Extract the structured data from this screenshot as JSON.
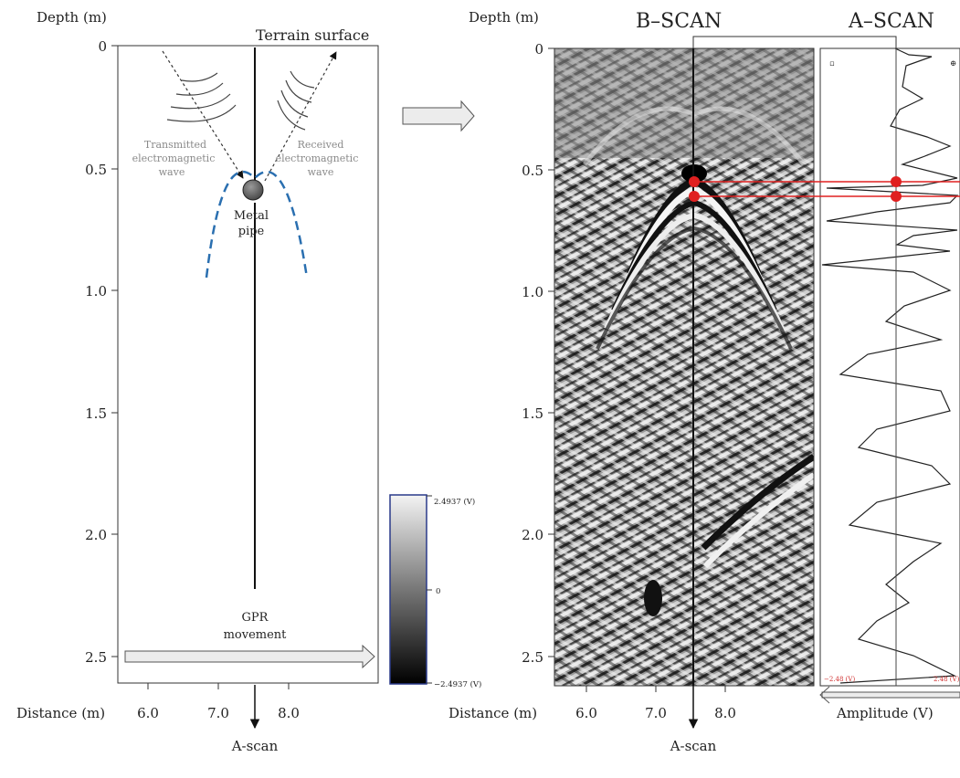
{
  "left_panel": {
    "depth_label": "Depth (m)",
    "distance_label": "Distance (m)",
    "depth_ticks": [
      "0",
      "0.5",
      "1.0",
      "1.5",
      "2.0",
      "2.5"
    ],
    "distance_ticks": [
      "6.0",
      "7.0",
      "8.0"
    ],
    "terrain_label": "Terrain surface",
    "transmitted_label": [
      "Transmitted",
      "electromagnetic",
      "wave"
    ],
    "received_label": [
      "Received",
      "electromagnetic",
      "wave"
    ],
    "pipe_label": [
      "Metal",
      "pipe"
    ],
    "gpr_label": [
      "GPR",
      "movement"
    ],
    "ascan_label": "A-scan"
  },
  "colorbar": {
    "max_label": "2.4937 (V)",
    "zero_label": "0",
    "min_label": "−2.4937 (V)"
  },
  "right_panel": {
    "depth_label": "Depth (m)",
    "distance_label": "Distance (m)",
    "bscan_title": "B–SCAN",
    "ascan_title": "A–SCAN",
    "depth_ticks": [
      "0",
      "0.5",
      "1.0",
      "1.5",
      "2.0",
      "2.5"
    ],
    "distance_ticks": [
      "6.0",
      "7.0",
      "8.0"
    ],
    "amplitude_label": "Amplitude (V)",
    "ascan_label": "A-scan",
    "amp_min_label": "−2.48 (V)",
    "amp_max_label": "2.48 (V)"
  },
  "colors": {
    "wave_dash": "#2a6fb0",
    "marker_red": "#e02020",
    "arrow_fill": "#ececec"
  }
}
